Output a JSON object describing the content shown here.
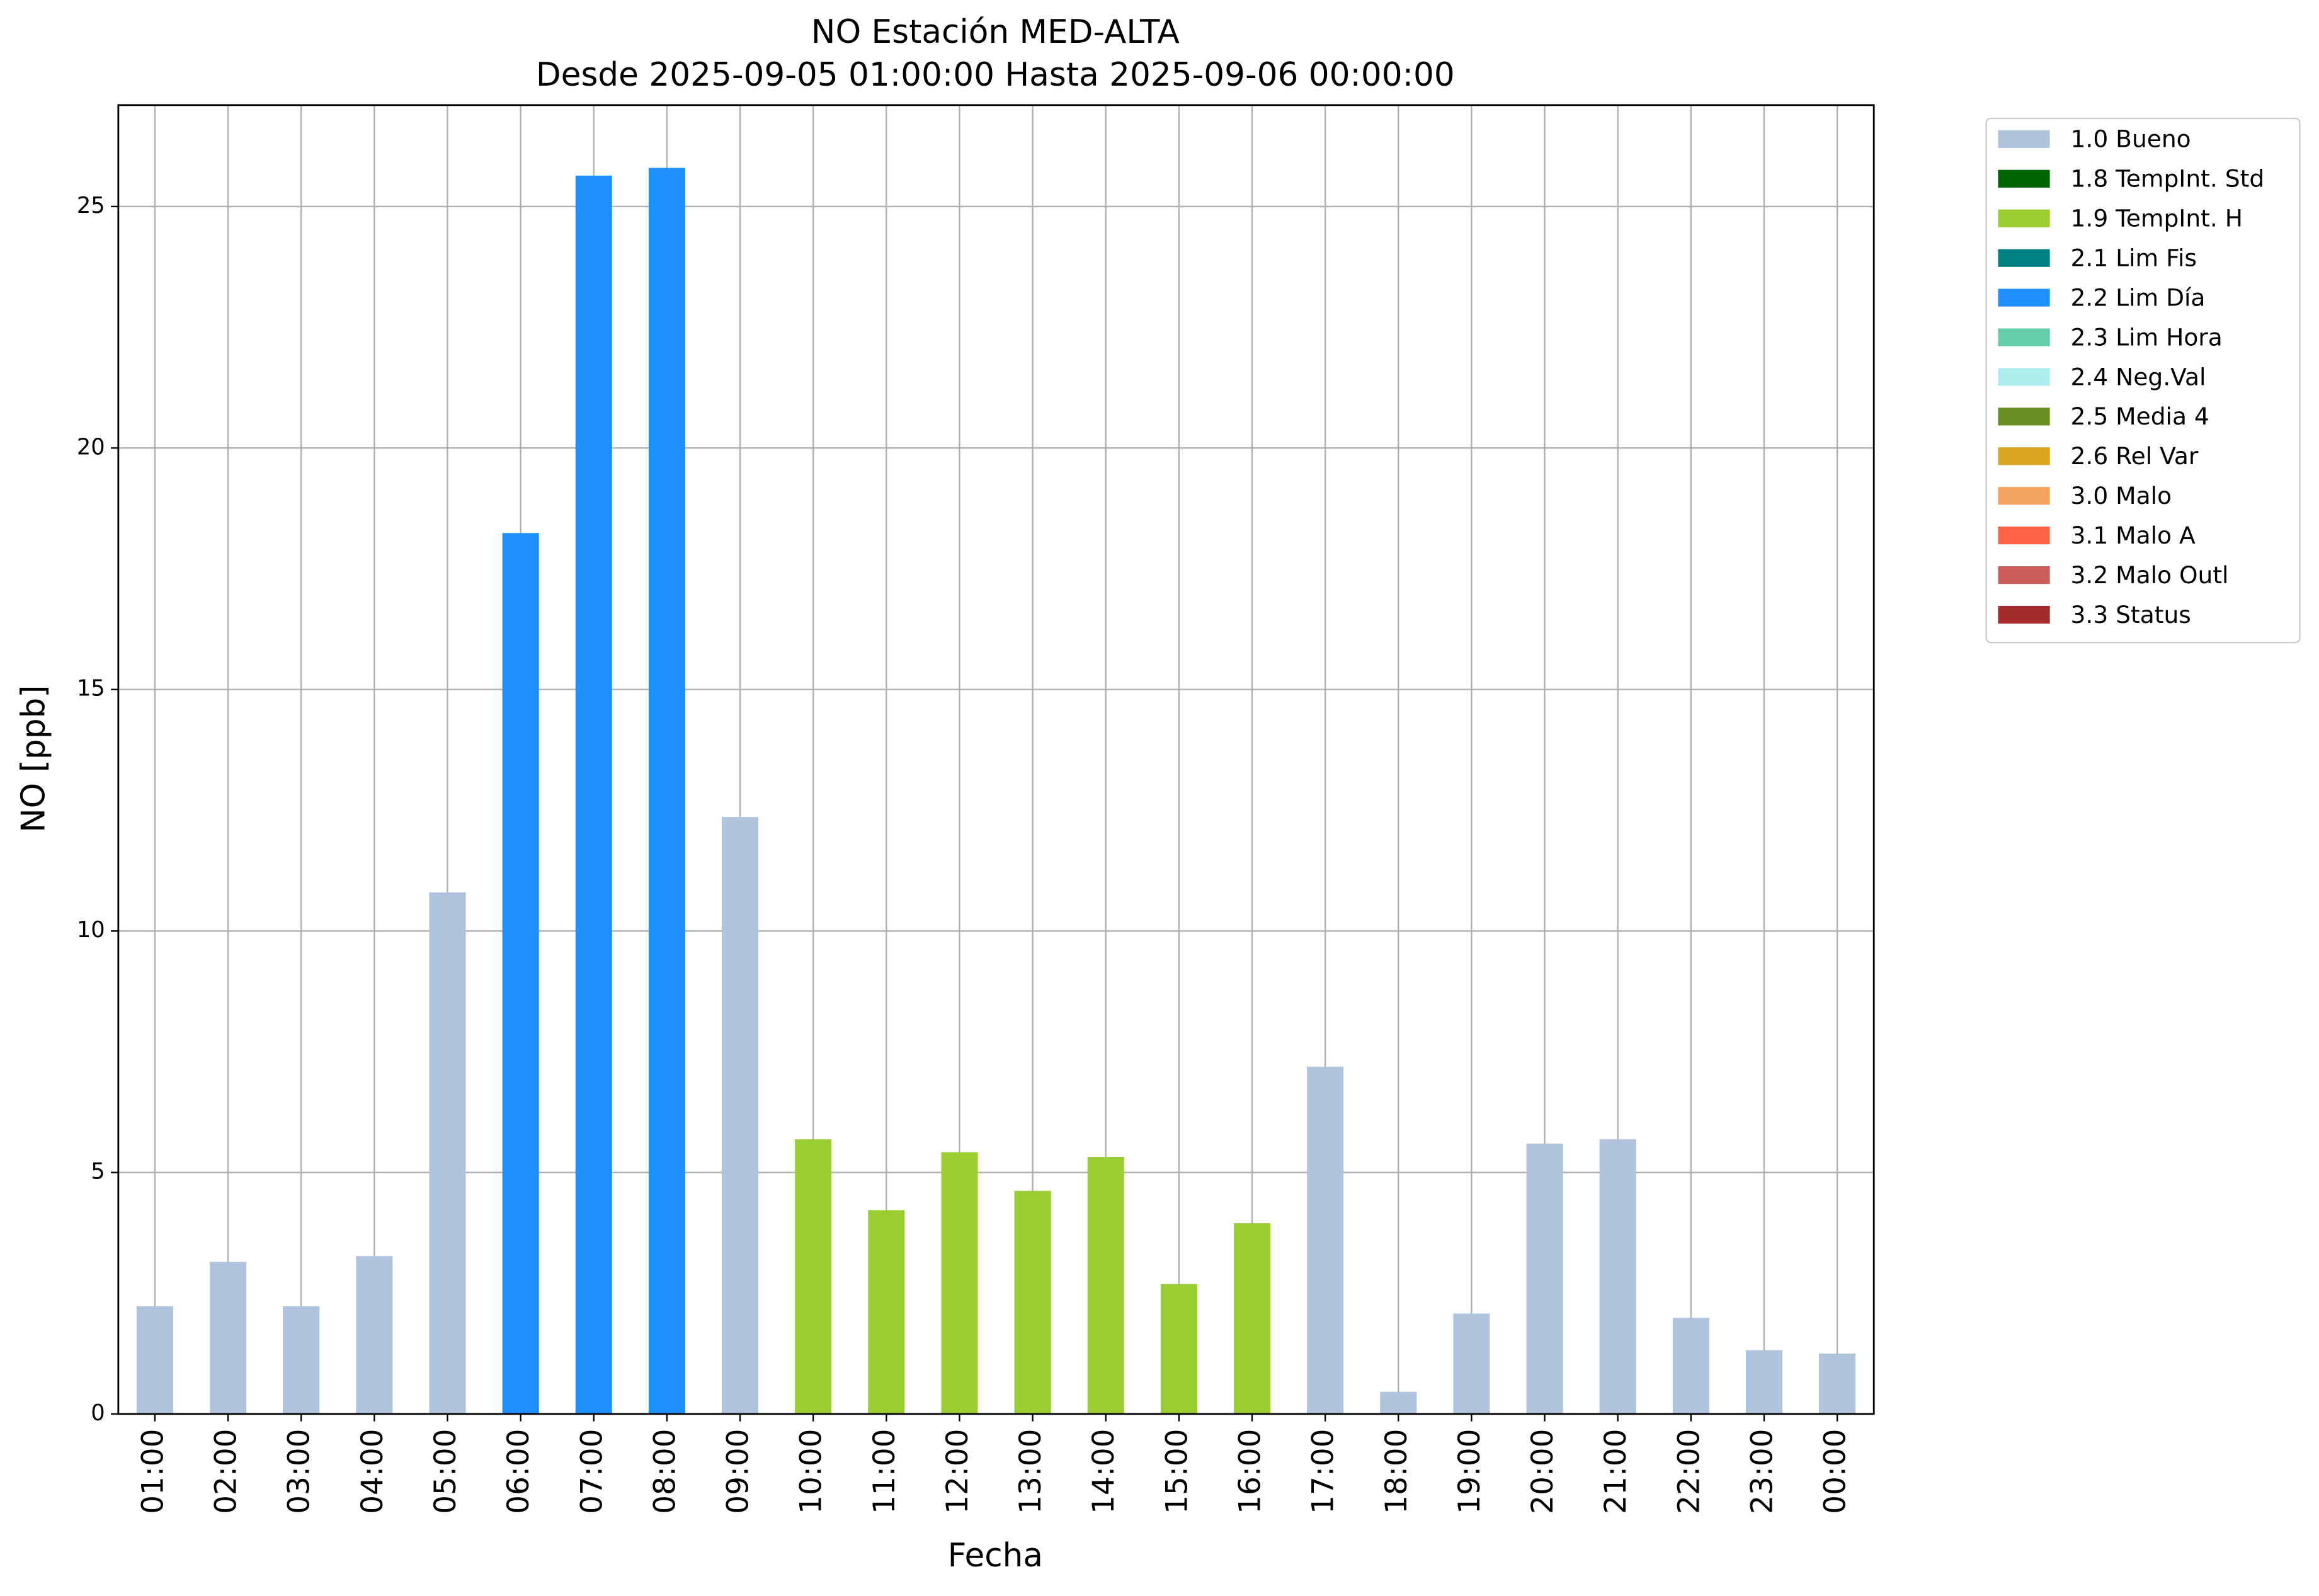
{
  "chart_data": {
    "type": "stacked_bar",
    "title": "NO Estación MED-ALTA",
    "subtitle": "Desde 2025-09-05 01:00:00 Hasta 2025-09-06 00:00:00",
    "x_label": "Fecha",
    "y_label": "NO [ppb]",
    "categories": [
      "01:00",
      "02:00",
      "03:00",
      "04:00",
      "05:00",
      "06:00",
      "07:00",
      "08:00",
      "09:00",
      "10:00",
      "11:00",
      "12:00",
      "13:00",
      "14:00",
      "15:00",
      "16:00",
      "17:00",
      "18:00",
      "19:00",
      "20:00",
      "21:00",
      "22:00",
      "23:00",
      "00:00"
    ],
    "series": [
      {
        "name": "1.0 Bueno",
        "color": "#b0c4de",
        "values": [
          2.23,
          3.15,
          2.23,
          3.27,
          10.8,
          null,
          null,
          null,
          12.36,
          null,
          null,
          null,
          null,
          null,
          null,
          null,
          7.19,
          0.46,
          2.08,
          5.6,
          5.69,
          1.99,
          1.32,
          1.25
        ]
      },
      {
        "name": "1.8 TempInt. Std",
        "color": "#006400",
        "values": [
          null,
          null,
          null,
          null,
          null,
          null,
          null,
          null,
          null,
          null,
          null,
          null,
          null,
          null,
          null,
          null,
          null,
          null,
          null,
          null,
          null,
          null,
          null,
          null
        ]
      },
      {
        "name": "1.9 TempInt. H",
        "color": "#9acd32",
        "values": [
          null,
          null,
          null,
          null,
          null,
          null,
          null,
          null,
          null,
          5.69,
          4.22,
          5.42,
          4.62,
          5.32,
          2.69,
          3.95,
          null,
          null,
          null,
          null,
          null,
          null,
          null,
          null
        ]
      },
      {
        "name": "2.1 Lim Fis",
        "color": "#008080",
        "values": [
          null,
          null,
          null,
          null,
          null,
          null,
          null,
          null,
          null,
          null,
          null,
          null,
          null,
          null,
          null,
          null,
          null,
          null,
          null,
          null,
          null,
          null,
          null,
          null
        ]
      },
      {
        "name": "2.2 Lim Día",
        "color": "#1e90ff",
        "values": [
          null,
          null,
          null,
          null,
          null,
          18.24,
          25.64,
          25.8,
          null,
          null,
          null,
          null,
          null,
          null,
          null,
          null,
          null,
          null,
          null,
          null,
          null,
          null,
          null,
          null
        ]
      },
      {
        "name": "2.3 Lim Hora",
        "color": "#66cdaa",
        "values": [
          null,
          null,
          null,
          null,
          null,
          null,
          null,
          null,
          null,
          null,
          null,
          null,
          null,
          null,
          null,
          null,
          null,
          null,
          null,
          null,
          null,
          null,
          null,
          null
        ]
      },
      {
        "name": "2.4 Neg.Val",
        "color": "#afeeee",
        "values": [
          null,
          null,
          null,
          null,
          null,
          null,
          null,
          null,
          null,
          null,
          null,
          null,
          null,
          null,
          null,
          null,
          null,
          null,
          null,
          null,
          null,
          null,
          null,
          null
        ]
      },
      {
        "name": "2.5 Media 4",
        "color": "#6b8e23",
        "values": [
          null,
          null,
          null,
          null,
          null,
          null,
          null,
          null,
          null,
          null,
          null,
          null,
          null,
          null,
          null,
          null,
          null,
          null,
          null,
          null,
          null,
          null,
          null,
          null
        ]
      },
      {
        "name": "2.6 Rel Var",
        "color": "#daa520",
        "values": [
          null,
          null,
          null,
          null,
          null,
          null,
          null,
          null,
          null,
          null,
          null,
          null,
          null,
          null,
          null,
          null,
          null,
          null,
          null,
          null,
          null,
          null,
          null,
          null
        ]
      },
      {
        "name": "3.0 Malo",
        "color": "#f4a460",
        "values": [
          null,
          null,
          null,
          null,
          null,
          null,
          null,
          null,
          null,
          null,
          null,
          null,
          null,
          null,
          null,
          null,
          null,
          null,
          null,
          null,
          null,
          null,
          null,
          null
        ]
      },
      {
        "name": "3.1 Malo A",
        "color": "#ff6347",
        "values": [
          null,
          null,
          null,
          null,
          null,
          null,
          null,
          null,
          null,
          null,
          null,
          null,
          null,
          null,
          null,
          null,
          null,
          null,
          null,
          null,
          null,
          null,
          null,
          null
        ]
      },
      {
        "name": "3.2 Malo Outl",
        "color": "#cd5c5c",
        "values": [
          null,
          null,
          null,
          null,
          null,
          null,
          null,
          null,
          null,
          null,
          null,
          null,
          null,
          null,
          null,
          null,
          null,
          null,
          null,
          null,
          null,
          null,
          null,
          null
        ]
      },
      {
        "name": "3.3 Status",
        "color": "#a52a2a",
        "values": [
          null,
          null,
          null,
          null,
          null,
          null,
          null,
          null,
          null,
          null,
          null,
          null,
          null,
          null,
          null,
          null,
          null,
          null,
          null,
          null,
          null,
          null,
          null,
          null
        ]
      }
    ],
    "ylim": [
      0,
      27.1
    ],
    "yticks": [
      0,
      5,
      10,
      15,
      20,
      25
    ],
    "grid": true,
    "legend": "outside-right"
  }
}
